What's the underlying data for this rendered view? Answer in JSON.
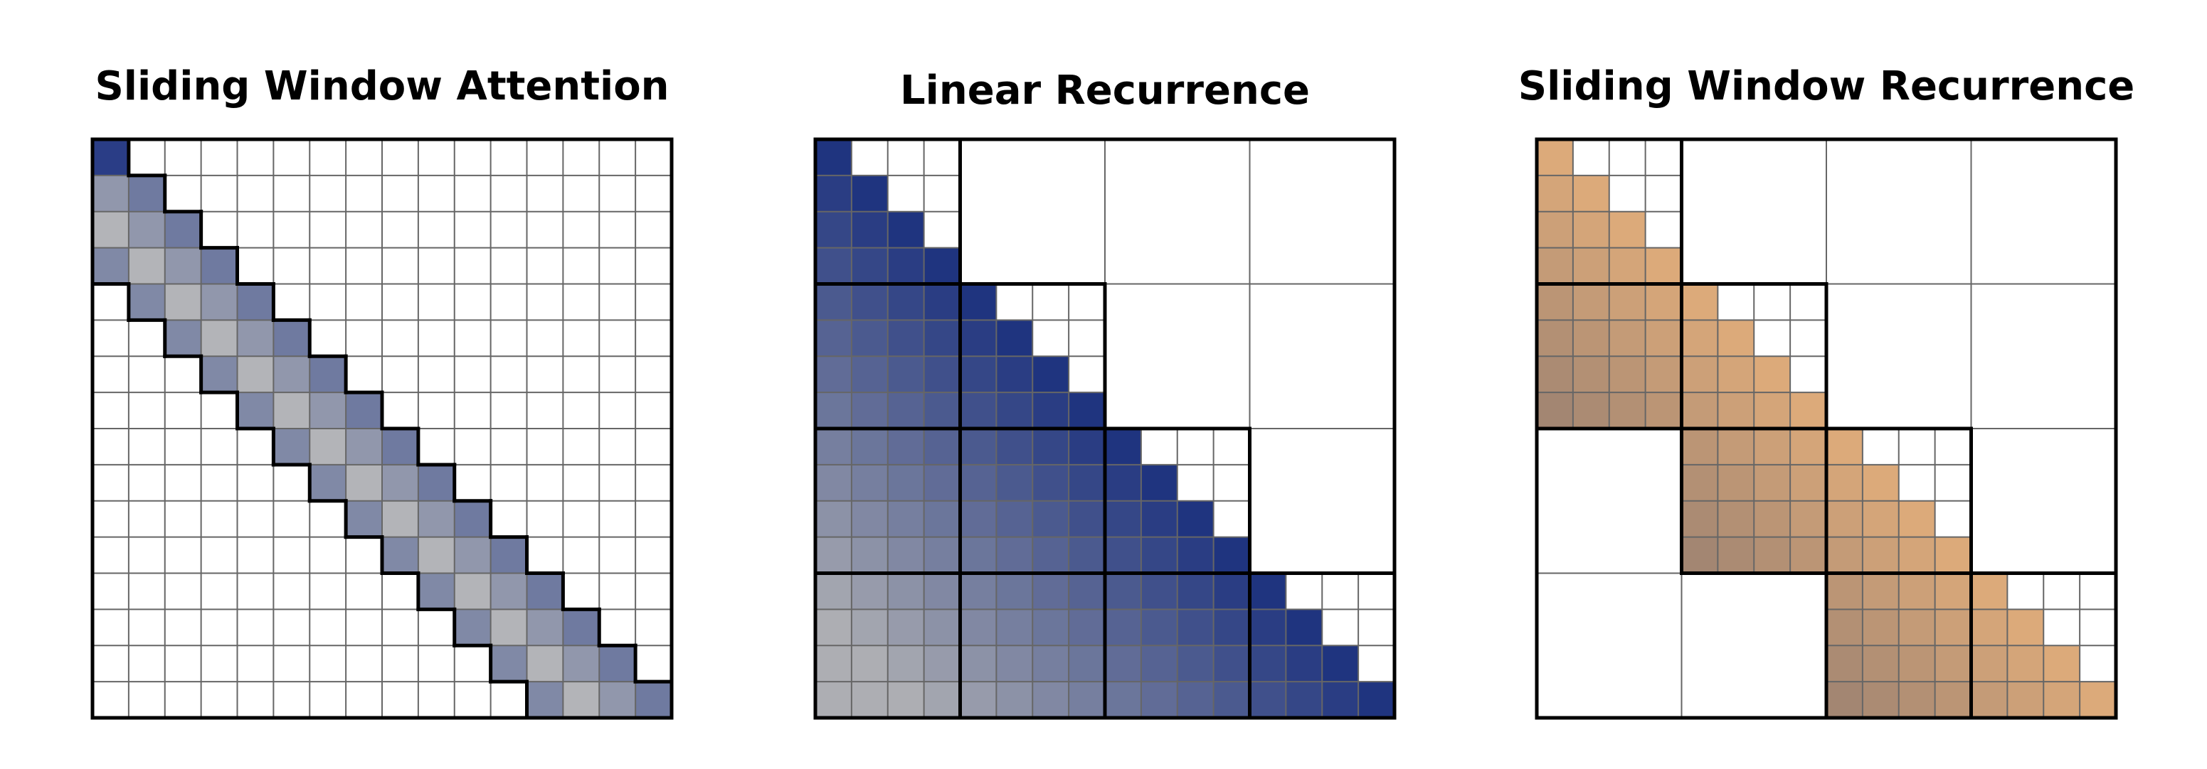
{
  "panels": [
    {
      "title": "Sliding Window Attention"
    },
    {
      "title": "Linear Recurrence"
    },
    {
      "title": "Sliding Window Recurrence"
    }
  ]
}
